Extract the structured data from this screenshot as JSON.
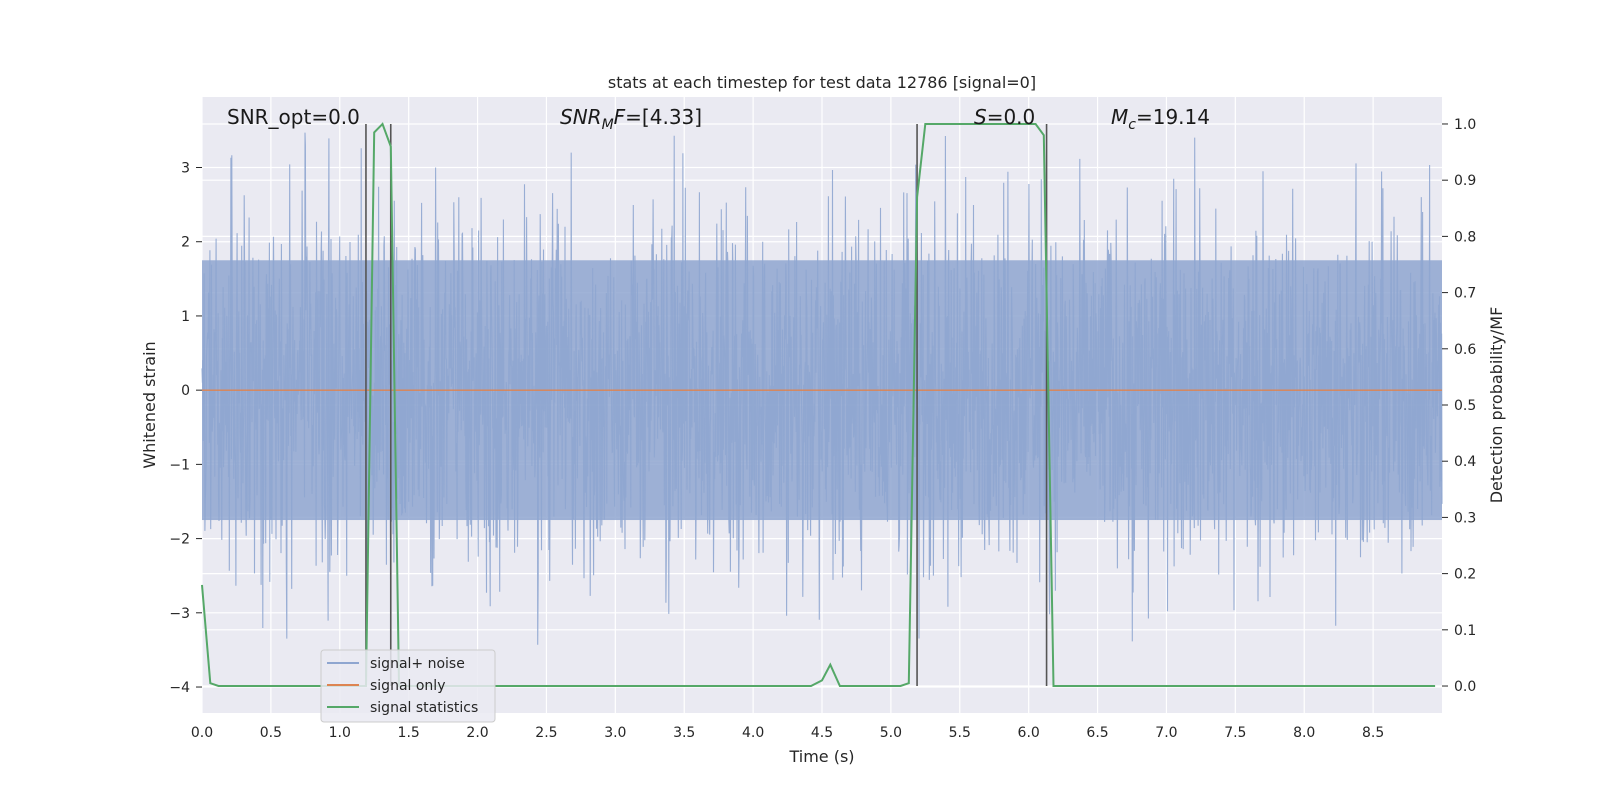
{
  "chart_data": {
    "type": "line",
    "title": "stats at each timestep for test data 12786 [signal=0]",
    "xlabel": "Time (s)",
    "ylabel_left": "Whitened strain",
    "ylabel_right": "Detection probability/MF",
    "xlim": [
      0.0,
      9.0
    ],
    "ylim_left": [
      -4.35,
      3.95
    ],
    "ylim_right": [
      -0.048,
      1.048
    ],
    "x_ticks": [
      0.0,
      0.5,
      1.0,
      1.5,
      2.0,
      2.5,
      3.0,
      3.5,
      4.0,
      4.5,
      5.0,
      5.5,
      6.0,
      6.5,
      7.0,
      7.5,
      8.0,
      8.5
    ],
    "x_tick_labels": [
      "0.0",
      "0.5",
      "1.0",
      "1.5",
      "2.0",
      "2.5",
      "3.0",
      "3.5",
      "4.0",
      "4.5",
      "5.0",
      "5.5",
      "6.0",
      "6.5",
      "7.0",
      "7.5",
      "8.0",
      "8.5"
    ],
    "y_left_ticks": [
      3,
      2,
      1,
      0,
      -1,
      -2,
      -3,
      -4
    ],
    "y_left_tick_labels": [
      "3",
      "2",
      "1",
      "0",
      "−1",
      "−2",
      "−3",
      "−4"
    ],
    "y_right_ticks": [
      1.0,
      0.9,
      0.8,
      0.7,
      0.6,
      0.5,
      0.4,
      0.3,
      0.2,
      0.1,
      0.0
    ],
    "y_right_tick_labels": [
      "1.0",
      "0.9",
      "0.8",
      "0.7",
      "0.6",
      "0.5",
      "0.4",
      "0.3",
      "0.2",
      "0.1",
      "0.0"
    ],
    "grid": true,
    "legend_placement": "lower-left",
    "annotations": {
      "snr_opt": "SNR_opt=0.0",
      "snr_mf_main": "SNR",
      "snr_mf_sub": "M",
      "snr_mf_italic": "F",
      "snr_mf_value": "=[4.33]",
      "s_label": "S",
      "s_value": "=0.0",
      "mc_main": "M",
      "mc_sub": "c",
      "mc_value": "=19.14"
    },
    "series": [
      {
        "name": "signal+ noise",
        "axis": "left",
        "color": "#8fa6d0",
        "kind": "noise",
        "x_range": [
          0.0,
          9.0
        ],
        "typical_range": [
          -1.75,
          1.75
        ],
        "extreme_range": [
          -4.0,
          3.55
        ]
      },
      {
        "name": "signal only",
        "axis": "left",
        "color": "#dd8452",
        "x": [
          0.0,
          9.0
        ],
        "y": [
          0.0,
          0.0
        ]
      },
      {
        "name": "signal statistics",
        "axis": "right",
        "color": "#55a868",
        "x": [
          0.0,
          0.06,
          0.12,
          1.15,
          1.19,
          1.25,
          1.31,
          1.37,
          1.43,
          1.5,
          4.42,
          4.5,
          4.56,
          4.63,
          5.07,
          5.13,
          5.19,
          5.25,
          6.05,
          6.11,
          6.18,
          6.25,
          8.95
        ],
        "y": [
          0.18,
          0.005,
          0.0,
          0.0,
          0.0,
          0.985,
          1.0,
          0.96,
          0.0,
          0.0,
          0.0,
          0.01,
          0.038,
          0.0,
          0.0,
          0.005,
          0.87,
          1.0,
          1.0,
          0.98,
          0.0,
          0.0,
          0.0
        ]
      }
    ],
    "vertical_lines": {
      "color": "#555555",
      "x": [
        1.19,
        1.37,
        5.19,
        6.13
      ],
      "y_range": [
        0.0,
        1.0
      ]
    },
    "legend": [
      "signal+ noise",
      "signal only",
      "signal statistics"
    ]
  }
}
